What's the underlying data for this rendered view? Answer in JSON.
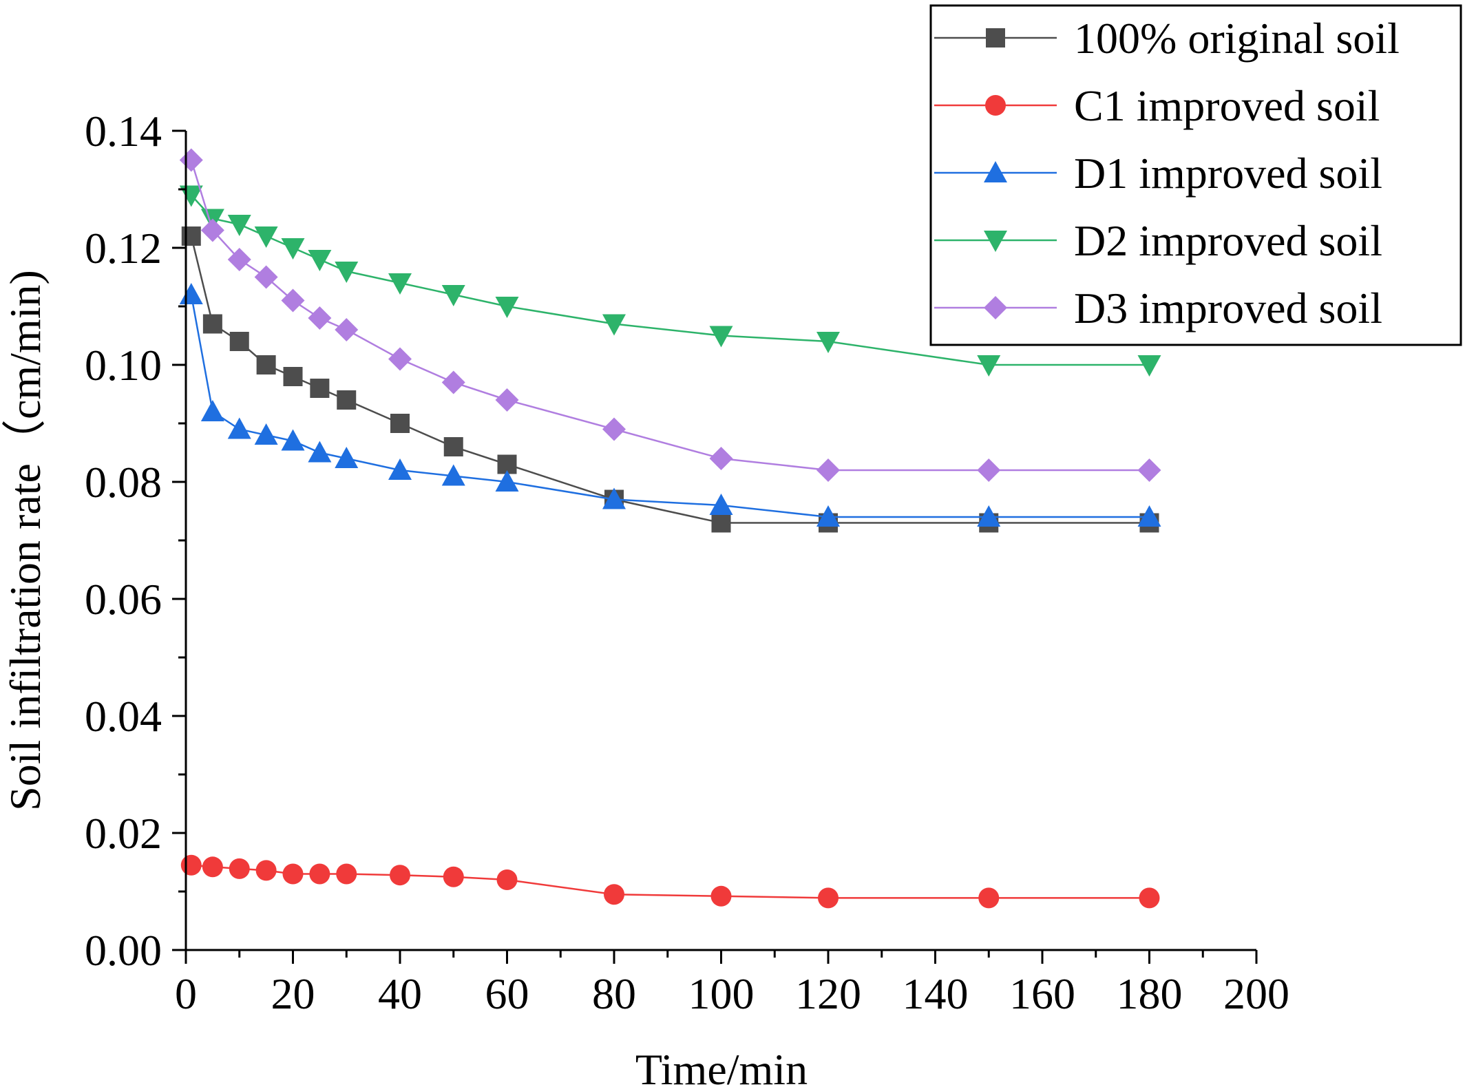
{
  "chart_data": {
    "type": "line",
    "title": "",
    "xlabel": "Time/min",
    "ylabel": "Soil infiltration rate（cm/min)",
    "xlim": [
      0,
      200
    ],
    "ylim": [
      0,
      0.14
    ],
    "xticks": [
      "0",
      "20",
      "40",
      "60",
      "80",
      "100",
      "120",
      "140",
      "160",
      "180",
      "200"
    ],
    "yticks": [
      "0.00",
      "0.02",
      "0.04",
      "0.06",
      "0.08",
      "0.10",
      "0.12",
      "0.14"
    ],
    "grid": false,
    "legend_position": "top-right",
    "x": [
      1,
      5,
      10,
      15,
      20,
      25,
      30,
      40,
      50,
      60,
      80,
      100,
      120,
      150,
      180
    ],
    "series": [
      {
        "name": "100% original soil",
        "marker": "square",
        "color": "#4d4d4d",
        "values": [
          0.122,
          0.107,
          0.104,
          0.1,
          0.098,
          0.096,
          0.094,
          0.09,
          0.086,
          0.083,
          0.077,
          0.073,
          0.073,
          0.073,
          0.073
        ]
      },
      {
        "name": "C1 improved soil",
        "marker": "circle",
        "color": "#f03a3a",
        "values": [
          0.0145,
          0.0142,
          0.0139,
          0.0136,
          0.013,
          0.013,
          0.013,
          0.0128,
          0.0125,
          0.012,
          0.0095,
          0.0092,
          0.0089,
          0.0089,
          0.0089
        ]
      },
      {
        "name": "D1 improved soil",
        "marker": "triangle-up",
        "color": "#1f6fe0",
        "values": [
          0.112,
          0.092,
          0.089,
          0.088,
          0.087,
          0.085,
          0.084,
          0.082,
          0.081,
          0.08,
          0.077,
          0.076,
          0.074,
          0.074,
          0.074
        ]
      },
      {
        "name": "D2 improved soil",
        "marker": "triangle-down",
        "color": "#2db36a",
        "values": [
          0.129,
          0.125,
          0.124,
          0.122,
          0.12,
          0.118,
          0.116,
          0.114,
          0.112,
          0.11,
          0.107,
          0.105,
          0.104,
          0.1,
          0.1
        ]
      },
      {
        "name": "D3 improved soil",
        "marker": "diamond",
        "color": "#b07ee0",
        "values": [
          0.135,
          0.123,
          0.118,
          0.115,
          0.111,
          0.108,
          0.106,
          0.101,
          0.097,
          0.094,
          0.089,
          0.084,
          0.082,
          0.082,
          0.082
        ]
      }
    ]
  }
}
